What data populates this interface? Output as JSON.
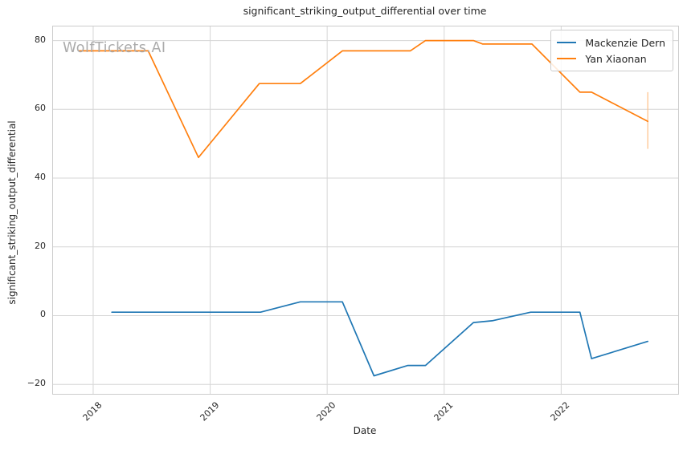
{
  "figure": {
    "title": "significant_striking_output_differential over time",
    "xlabel": "Date",
    "ylabel": "significant_striking_output_differential",
    "watermark": "WolfTickets.AI"
  },
  "legend": {
    "position": "upper right",
    "items": [
      {
        "label": "Mackenzie Dern",
        "color": "#1f77b4"
      },
      {
        "label": "Yan Xiaonan",
        "color": "#ff7f0e"
      }
    ]
  },
  "colors": {
    "grid": "#d6d6d6",
    "spine": "#cccccc",
    "text": "#262626",
    "watermark_gray": "#ababab"
  },
  "chart_data": {
    "type": "line",
    "title": "significant_striking_output_differential over time",
    "xlabel": "Date",
    "ylabel": "significant_striking_output_differential",
    "grid": true,
    "legend_position": "upper right",
    "xlim": [
      2017.657,
      2023.0
    ],
    "ylim": [
      -22.75,
      84.1
    ],
    "x_ticks": [
      {
        "value": 2018,
        "label": "2018"
      },
      {
        "value": 2019,
        "label": "2019"
      },
      {
        "value": 2020,
        "label": "2020"
      },
      {
        "value": 2021,
        "label": "2021"
      },
      {
        "value": 2022,
        "label": "2022"
      }
    ],
    "y_ticks": [
      {
        "value": 80,
        "label": "80"
      },
      {
        "value": 60,
        "label": "60"
      },
      {
        "value": 40,
        "label": "40"
      },
      {
        "value": 20,
        "label": "20"
      },
      {
        "value": 0,
        "label": "0"
      },
      {
        "value": -20,
        "label": "−20"
      }
    ],
    "series": [
      {
        "name": "Mackenzie Dern",
        "color": "#1f77b4",
        "points": [
          [
            2018.16,
            1
          ],
          [
            2019.43,
            1
          ],
          [
            2019.77,
            4
          ],
          [
            2020.13,
            4
          ],
          [
            2020.4,
            -17.5
          ],
          [
            2020.69,
            -14.5
          ],
          [
            2020.84,
            -14.5
          ],
          [
            2021.25,
            -2
          ],
          [
            2021.41,
            -1.5
          ],
          [
            2021.74,
            1
          ],
          [
            2022.16,
            1
          ],
          [
            2022.26,
            -12.5
          ],
          [
            2022.74,
            -7.5
          ]
        ]
      },
      {
        "name": "Yan Xiaonan",
        "color": "#ff7f0e",
        "points": [
          [
            2017.88,
            77
          ],
          [
            2018.47,
            77
          ],
          [
            2018.9,
            46
          ],
          [
            2019.42,
            67.5
          ],
          [
            2019.77,
            67.5
          ],
          [
            2020.13,
            77
          ],
          [
            2020.71,
            77
          ],
          [
            2020.84,
            80
          ],
          [
            2021.25,
            80
          ],
          [
            2021.33,
            79
          ],
          [
            2021.75,
            79
          ],
          [
            2022.16,
            65
          ],
          [
            2022.26,
            65
          ],
          [
            2022.74,
            56.5
          ]
        ],
        "error_bar": {
          "x": 2022.74,
          "low": 48.5,
          "high": 65,
          "color": "#ffbf86"
        }
      }
    ]
  }
}
